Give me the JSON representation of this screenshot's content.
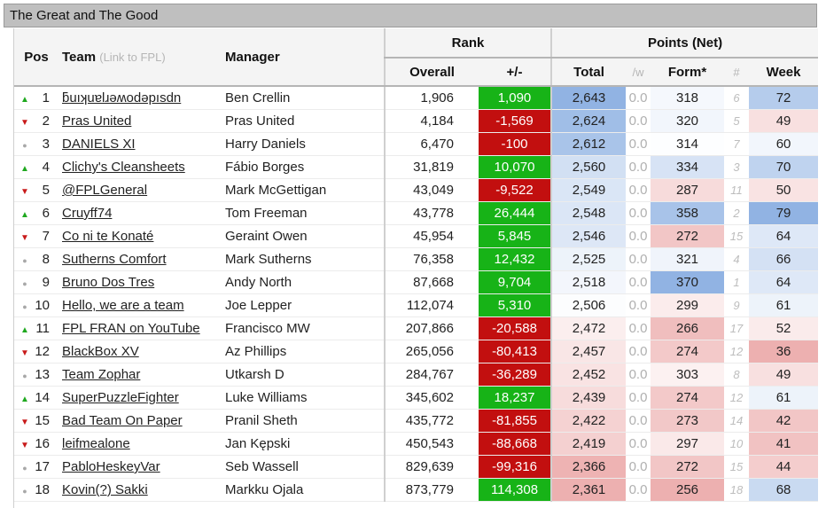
{
  "window": {
    "title": "The Great and The Good"
  },
  "header": {
    "pos": "Pos",
    "team": "Team",
    "team_sub": "(Link to FPL)",
    "manager": "Manager",
    "rank": "Rank",
    "overall": "Overall",
    "change": "+/-",
    "points": "Points (Net)",
    "total": "Total",
    "tw": "/w",
    "form": "Form*",
    "form_rank": "#",
    "week": "Week"
  },
  "colors": {
    "rise": "#17b317",
    "fall": "#c20f0f"
  },
  "rows": [
    {
      "pos": "1",
      "move": "up",
      "team": "ƃuıʞuɐlɹǝʍodǝpısdn",
      "manager": "Ben Crellin",
      "overall": "1,906",
      "change": "1,090",
      "change_dir": "up",
      "total": "2,643",
      "tw": "0.0",
      "form": "318",
      "form_rank": "6",
      "week": "72"
    },
    {
      "pos": "2",
      "move": "down",
      "team": "Pras United",
      "manager": "Pras United",
      "overall": "4,184",
      "change": "-1,569",
      "change_dir": "down",
      "total": "2,624",
      "tw": "0.0",
      "form": "320",
      "form_rank": "5",
      "week": "49"
    },
    {
      "pos": "3",
      "move": "same",
      "team": "DANIELS XI",
      "manager": "Harry Daniels",
      "overall": "6,470",
      "change": "-100",
      "change_dir": "down",
      "total": "2,612",
      "tw": "0.0",
      "form": "314",
      "form_rank": "7",
      "week": "60"
    },
    {
      "pos": "4",
      "move": "up",
      "team": "Clichy's Cleansheets",
      "manager": "Fábio Borges",
      "overall": "31,819",
      "change": "10,070",
      "change_dir": "up",
      "total": "2,560",
      "tw": "0.0",
      "form": "334",
      "form_rank": "3",
      "week": "70"
    },
    {
      "pos": "5",
      "move": "down",
      "team": "@FPLGeneral",
      "manager": "Mark McGettigan",
      "overall": "43,049",
      "change": "-9,522",
      "change_dir": "down",
      "total": "2,549",
      "tw": "0.0",
      "form": "287",
      "form_rank": "11",
      "week": "50"
    },
    {
      "pos": "6",
      "move": "up",
      "team": "Cruyff74",
      "manager": "Tom Freeman",
      "overall": "43,778",
      "change": "26,444",
      "change_dir": "up",
      "total": "2,548",
      "tw": "0.0",
      "form": "358",
      "form_rank": "2",
      "week": "79"
    },
    {
      "pos": "7",
      "move": "down",
      "team": "Co ni te Konaté",
      "manager": "Geraint Owen",
      "overall": "45,954",
      "change": "5,845",
      "change_dir": "up",
      "total": "2,546",
      "tw": "0.0",
      "form": "272",
      "form_rank": "15",
      "week": "64"
    },
    {
      "pos": "8",
      "move": "same",
      "team": "Sutherns Comfort",
      "manager": "Mark Sutherns",
      "overall": "76,358",
      "change": "12,432",
      "change_dir": "up",
      "total": "2,525",
      "tw": "0.0",
      "form": "321",
      "form_rank": "4",
      "week": "66"
    },
    {
      "pos": "9",
      "move": "same",
      "team": "Bruno Dos Tres",
      "manager": "Andy North",
      "overall": "87,668",
      "change": "9,704",
      "change_dir": "up",
      "total": "2,518",
      "tw": "0.0",
      "form": "370",
      "form_rank": "1",
      "week": "64"
    },
    {
      "pos": "10",
      "move": "same",
      "team": "Hello, we are a team",
      "manager": "Joe Lepper",
      "overall": "112,074",
      "change": "5,310",
      "change_dir": "up",
      "total": "2,506",
      "tw": "0.0",
      "form": "299",
      "form_rank": "9",
      "week": "61"
    },
    {
      "pos": "11",
      "move": "up",
      "team": "FPL FRAN on YouTube",
      "manager": "Francisco MW",
      "overall": "207,866",
      "change": "-20,588",
      "change_dir": "down",
      "total": "2,472",
      "tw": "0.0",
      "form": "266",
      "form_rank": "17",
      "week": "52"
    },
    {
      "pos": "12",
      "move": "down",
      "team": "BlackBox XV",
      "manager": "Az Phillips",
      "overall": "265,056",
      "change": "-80,413",
      "change_dir": "down",
      "total": "2,457",
      "tw": "0.0",
      "form": "274",
      "form_rank": "12",
      "week": "36"
    },
    {
      "pos": "13",
      "move": "same",
      "team": "Team Zophar",
      "manager": "Utkarsh D",
      "overall": "284,767",
      "change": "-36,289",
      "change_dir": "down",
      "total": "2,452",
      "tw": "0.0",
      "form": "303",
      "form_rank": "8",
      "week": "49"
    },
    {
      "pos": "14",
      "move": "up",
      "team": "SuperPuzzleFighter",
      "manager": "Luke Williams",
      "overall": "345,602",
      "change": "18,237",
      "change_dir": "up",
      "total": "2,439",
      "tw": "0.0",
      "form": "274",
      "form_rank": "12",
      "week": "61"
    },
    {
      "pos": "15",
      "move": "down",
      "team": "Bad Team On Paper",
      "manager": "Pranil Sheth",
      "overall": "435,772",
      "change": "-81,855",
      "change_dir": "down",
      "total": "2,422",
      "tw": "0.0",
      "form": "273",
      "form_rank": "14",
      "week": "42"
    },
    {
      "pos": "16",
      "move": "down",
      "team": "leifmealone",
      "manager": "Jan Kępski",
      "overall": "450,543",
      "change": "-88,668",
      "change_dir": "down",
      "total": "2,419",
      "tw": "0.0",
      "form": "297",
      "form_rank": "10",
      "week": "41"
    },
    {
      "pos": "17",
      "move": "same",
      "team": "PabloHeskeyVar",
      "manager": "Seb Wassell",
      "overall": "829,639",
      "change": "-99,316",
      "change_dir": "down",
      "total": "2,366",
      "tw": "0.0",
      "form": "272",
      "form_rank": "15",
      "week": "44"
    },
    {
      "pos": "18",
      "move": "same",
      "team": "Kovin(?) Sakki",
      "manager": "Markku Ojala",
      "overall": "873,779",
      "change": "114,308",
      "change_dir": "up",
      "total": "2,361",
      "tw": "0.0",
      "form": "256",
      "form_rank": "18",
      "week": "68"
    }
  ]
}
